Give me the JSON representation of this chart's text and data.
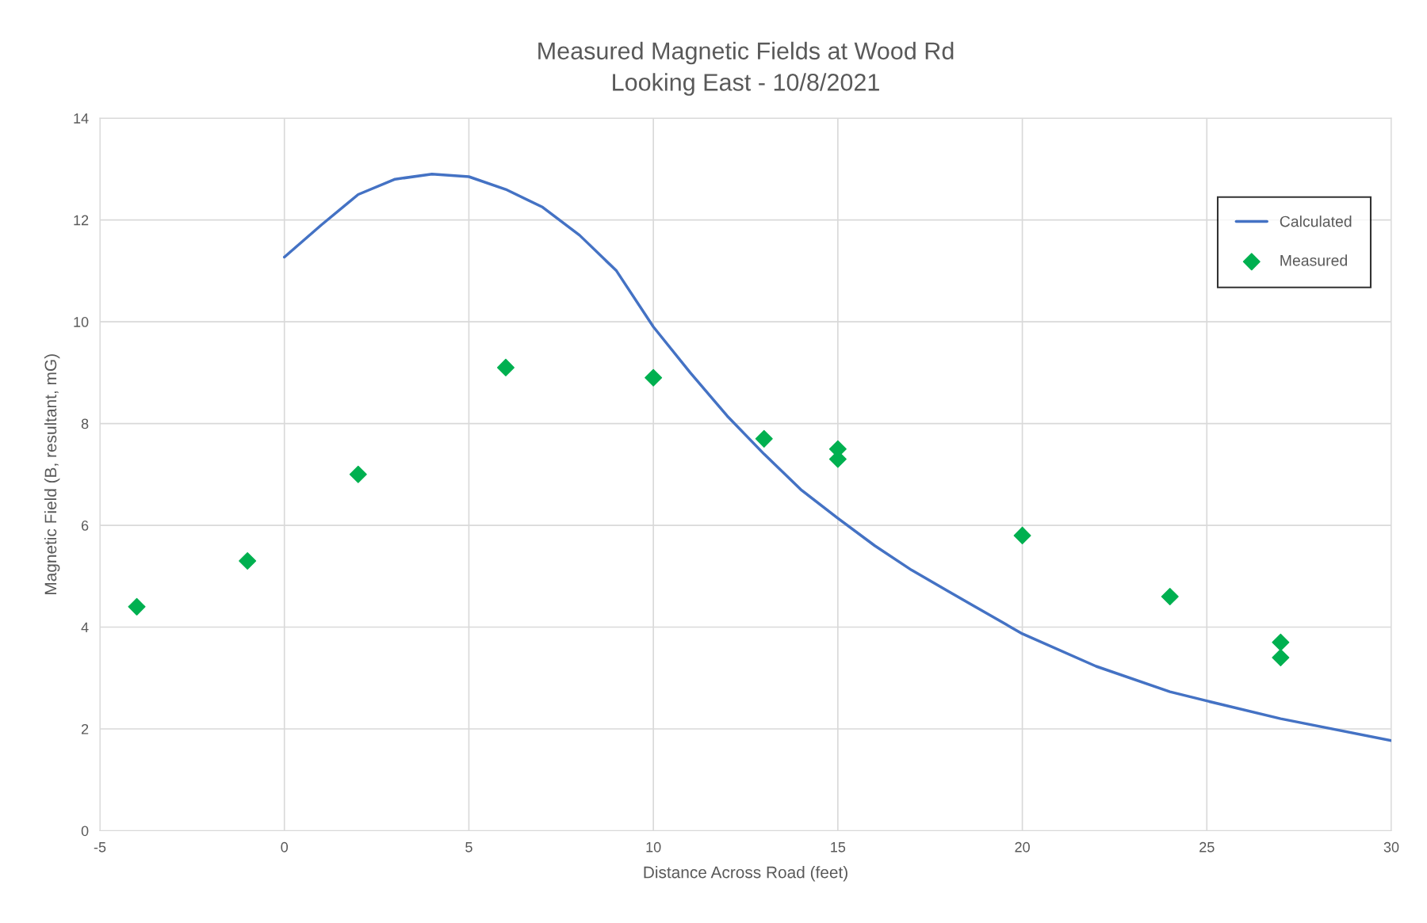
{
  "chart_data": {
    "type": "scatter",
    "title": "Measured Magnetic Fields at Wood Rd\nLooking East - 10/8/2021",
    "xlabel": "Distance Across Road (feet)",
    "ylabel": "Magnetic Field (B, resultant, mG)",
    "xlim": [
      -5,
      30
    ],
    "xticks": [
      -5,
      0,
      5,
      10,
      15,
      20,
      25,
      30
    ],
    "ylim": [
      0,
      14
    ],
    "yticks": [
      0,
      2,
      4,
      6,
      8,
      10,
      12,
      14
    ],
    "grid": true,
    "legend": "top right",
    "series": [
      {
        "name": "Calculated",
        "type": "line",
        "color": "#4472c4",
        "marker": "none",
        "line_style": "solid",
        "x": [
          0,
          1,
          2,
          3,
          4,
          5,
          6,
          7,
          8,
          9,
          10,
          11,
          12,
          13,
          14,
          15,
          16,
          17,
          18,
          20,
          22,
          24,
          25,
          27,
          30
        ],
        "values": [
          11.27,
          11.9,
          12.5,
          12.8,
          12.9,
          12.85,
          12.6,
          12.25,
          11.7,
          11.0,
          9.9,
          9.0,
          8.15,
          7.4,
          6.7,
          6.14,
          5.6,
          5.12,
          4.7,
          3.87,
          3.23,
          2.73,
          2.55,
          2.2,
          1.77
        ]
      },
      {
        "name": "Measured",
        "color": "#00b050",
        "marker": "diamond",
        "x": [
          -4,
          -1,
          2,
          6,
          10,
          13,
          15,
          15,
          20,
          24,
          27,
          27
        ],
        "values": [
          4.4,
          5.3,
          7.0,
          9.1,
          8.9,
          7.7,
          7.5,
          7.3,
          5.8,
          4.6,
          3.7,
          3.4
        ]
      }
    ]
  }
}
